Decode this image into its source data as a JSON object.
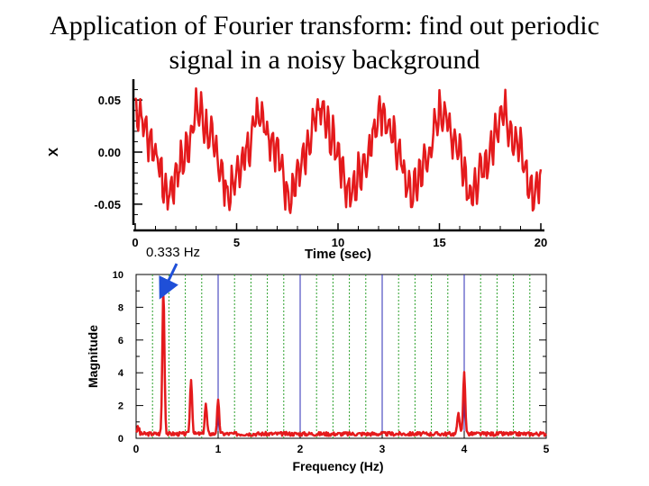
{
  "page": {
    "title_line1": "Application of Fourier transform: find out periodic",
    "title_line2": "signal in a noisy background",
    "annotation": "0.333 Hz"
  },
  "colors": {
    "signal": "#e41a1c",
    "solid_grid": "#2b2bb5",
    "dotted_grid": "#2ca02c",
    "arrow": "#1f4fd8"
  },
  "chart_data": [
    {
      "type": "line",
      "title": "",
      "xlabel": "Time (sec)",
      "ylabel": "X",
      "xlim": [
        0,
        20
      ],
      "ylim": [
        -0.07,
        0.07
      ],
      "xticks": [
        0,
        5,
        10,
        15,
        20
      ],
      "yticks": [
        0.05,
        0.0,
        -0.05
      ],
      "ytick_labels": [
        "0.05",
        "0.00",
        "-0.05"
      ],
      "grid": false,
      "series": [
        {
          "composition": "periodic signal plus broadband noise",
          "components": [
            {
              "frequency_hz": 0.333,
              "amplitude": 0.035
            },
            {
              "frequency_hz": 1,
              "amplitude": 0.006
            },
            {
              "frequency_hz": 4,
              "amplitude": 0.015
            }
          ],
          "noise_amplitude": 0.01,
          "x_range": [
            0,
            20
          ],
          "points": 400
        }
      ]
    },
    {
      "type": "line",
      "title": "",
      "xlabel": "Frequency (Hz)",
      "ylabel": "Magnitude",
      "xlim": [
        0,
        5
      ],
      "ylim": [
        0,
        10
      ],
      "xticks": [
        0,
        1,
        2,
        3,
        4,
        5
      ],
      "yticks": [
        0,
        2,
        4,
        6,
        8,
        10
      ],
      "grid": true,
      "solid_gridlines_x": [
        1,
        2,
        3,
        4
      ],
      "dotted_gridlines_x": [
        0.2,
        0.4,
        0.6,
        0.8,
        1.2,
        1.4,
        1.6,
        1.8,
        2.2,
        2.4,
        2.6,
        2.8,
        3.2,
        3.4,
        3.6,
        3.8,
        4.2,
        4.4,
        4.6,
        4.8
      ],
      "series": [
        {
          "peaks": [
            {
              "x": 0.333,
              "y": 9.0
            },
            {
              "x": 0.67,
              "y": 3.4
            },
            {
              "x": 0.85,
              "y": 1.8
            },
            {
              "x": 1.0,
              "y": 2.0
            },
            {
              "x": 3.93,
              "y": 1.4
            },
            {
              "x": 4.0,
              "y": 3.8
            }
          ],
          "baseline": 0.3
        }
      ]
    }
  ]
}
